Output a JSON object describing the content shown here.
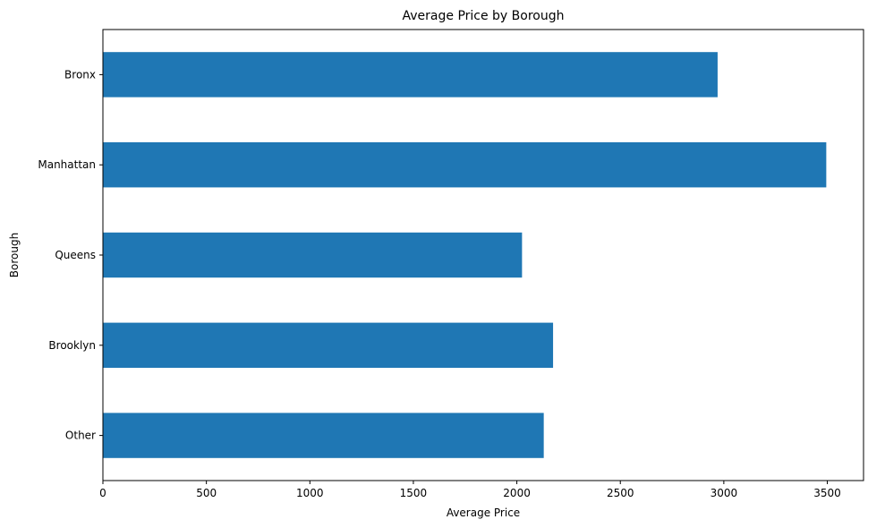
{
  "chart_data": {
    "type": "bar",
    "orientation": "horizontal",
    "title": "Average Price by Borough",
    "xlabel": "Average Price",
    "ylabel": "Borough",
    "categories": [
      "Bronx",
      "Manhattan",
      "Queens",
      "Brooklyn",
      "Other"
    ],
    "values": [
      2970,
      3495,
      2025,
      2175,
      2130
    ],
    "xlim": [
      0,
      3675
    ],
    "xticks": [
      0,
      500,
      1000,
      1500,
      2000,
      2500,
      3000,
      3500
    ],
    "xtick_labels": [
      "0",
      "500",
      "1000",
      "1500",
      "2000",
      "2500",
      "3000",
      "3500"
    ],
    "grid": false,
    "legend": "none",
    "bar_color": "#1f77b4"
  }
}
